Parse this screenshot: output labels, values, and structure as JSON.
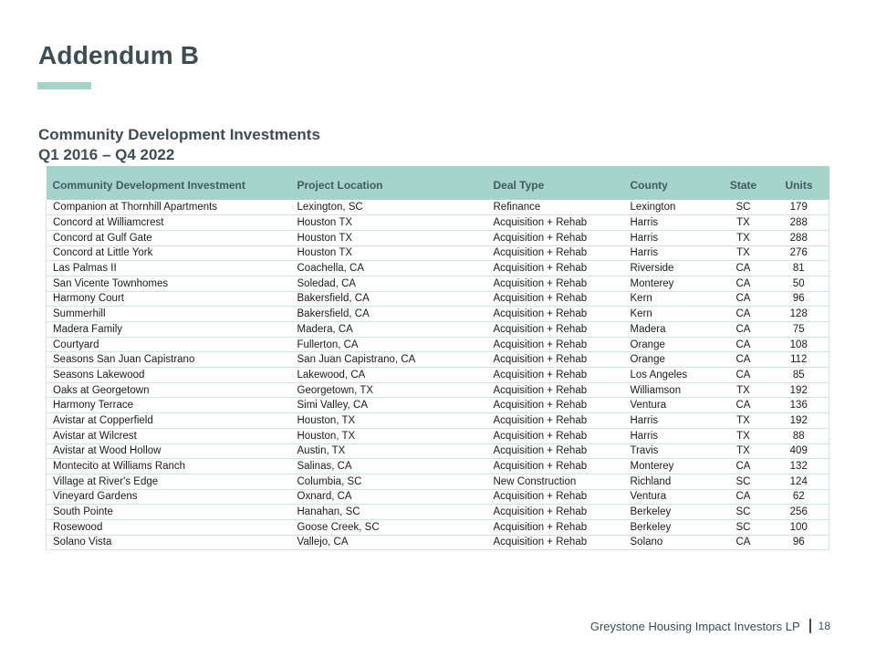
{
  "slide": {
    "title": "Addendum B",
    "subtitle_line1": "Community Development Investments",
    "subtitle_line2": "Q1 2016 – Q4 2022",
    "footer": {
      "company": "Greystone Housing Impact Investors LP",
      "page": "18"
    }
  },
  "colors": {
    "accent_teal": "#a5d3c9",
    "header_band": "#a7d4ca",
    "row_separator": "#cde7e1",
    "heading_text": "#3e4d54",
    "header_text": "#3f5a63",
    "body_text": "#1b1b1b"
  },
  "table": {
    "columns": [
      "Community Development Investment",
      "Project Location",
      "Deal Type",
      "County",
      "State",
      "Units"
    ],
    "rows": [
      [
        "Companion at Thornhill Apartments",
        "Lexington, SC",
        "Refinance",
        "Lexington",
        "SC",
        "179"
      ],
      [
        "Concord at Williamcrest",
        "Houston TX",
        "Acquisition + Rehab",
        "Harris",
        "TX",
        "288"
      ],
      [
        "Concord at Gulf Gate",
        "Houston TX",
        "Acquisition + Rehab",
        "Harris",
        "TX",
        "288"
      ],
      [
        "Concord at Little York",
        "Houston TX",
        "Acquisition + Rehab",
        "Harris",
        "TX",
        "276"
      ],
      [
        "Las Palmas II",
        "Coachella, CA",
        "Acquisition + Rehab",
        "Riverside",
        "CA",
        "81"
      ],
      [
        "San Vicente Townhomes",
        "Soledad, CA",
        "Acquisition + Rehab",
        "Monterey",
        "CA",
        "50"
      ],
      [
        "Harmony Court",
        "Bakersfield, CA",
        "Acquisition + Rehab",
        "Kern",
        "CA",
        "96"
      ],
      [
        "Summerhill",
        "Bakersfield, CA",
        "Acquisition + Rehab",
        "Kern",
        "CA",
        "128"
      ],
      [
        "Madera Family",
        "Madera, CA",
        "Acquisition + Rehab",
        "Madera",
        "CA",
        "75"
      ],
      [
        "Courtyard",
        "Fullerton, CA",
        "Acquisition + Rehab",
        "Orange",
        "CA",
        "108"
      ],
      [
        "Seasons San Juan Capistrano",
        "San Juan Capistrano, CA",
        "Acquisition + Rehab",
        "Orange",
        "CA",
        "112"
      ],
      [
        "Seasons Lakewood",
        "Lakewood, CA",
        "Acquisition + Rehab",
        "Los Angeles",
        "CA",
        "85"
      ],
      [
        "Oaks at Georgetown",
        "Georgetown, TX",
        "Acquisition + Rehab",
        "Williamson",
        "TX",
        "192"
      ],
      [
        "Harmony Terrace",
        "Simi Valley, CA",
        "Acquisition + Rehab",
        "Ventura",
        "CA",
        "136"
      ],
      [
        "Avistar at Copperfield",
        "Houston, TX",
        "Acquisition + Rehab",
        "Harris",
        "TX",
        "192"
      ],
      [
        "Avistar at Wilcrest",
        "Houston, TX",
        "Acquisition + Rehab",
        "Harris",
        "TX",
        "88"
      ],
      [
        "Avistar at Wood Hollow",
        "Austin, TX",
        "Acquisition + Rehab",
        "Travis",
        "TX",
        "409"
      ],
      [
        "Montecito at Williams Ranch",
        "Salinas, CA",
        "Acquisition + Rehab",
        "Monterey",
        "CA",
        "132"
      ],
      [
        "Village at River's Edge",
        "Columbia, SC",
        "New Construction",
        "Richland",
        "SC",
        "124"
      ],
      [
        "Vineyard Gardens",
        "Oxnard, CA",
        "Acquisition + Rehab",
        "Ventura",
        "CA",
        "62"
      ],
      [
        "South Pointe",
        "Hanahan, SC",
        "Acquisition + Rehab",
        "Berkeley",
        "SC",
        "256"
      ],
      [
        "Rosewood",
        "Goose Creek, SC",
        "Acquisition + Rehab",
        "Berkeley",
        "SC",
        "100"
      ],
      [
        "Solano Vista",
        "Vallejo, CA",
        "Acquisition + Rehab",
        "Solano",
        "CA",
        "96"
      ]
    ]
  }
}
